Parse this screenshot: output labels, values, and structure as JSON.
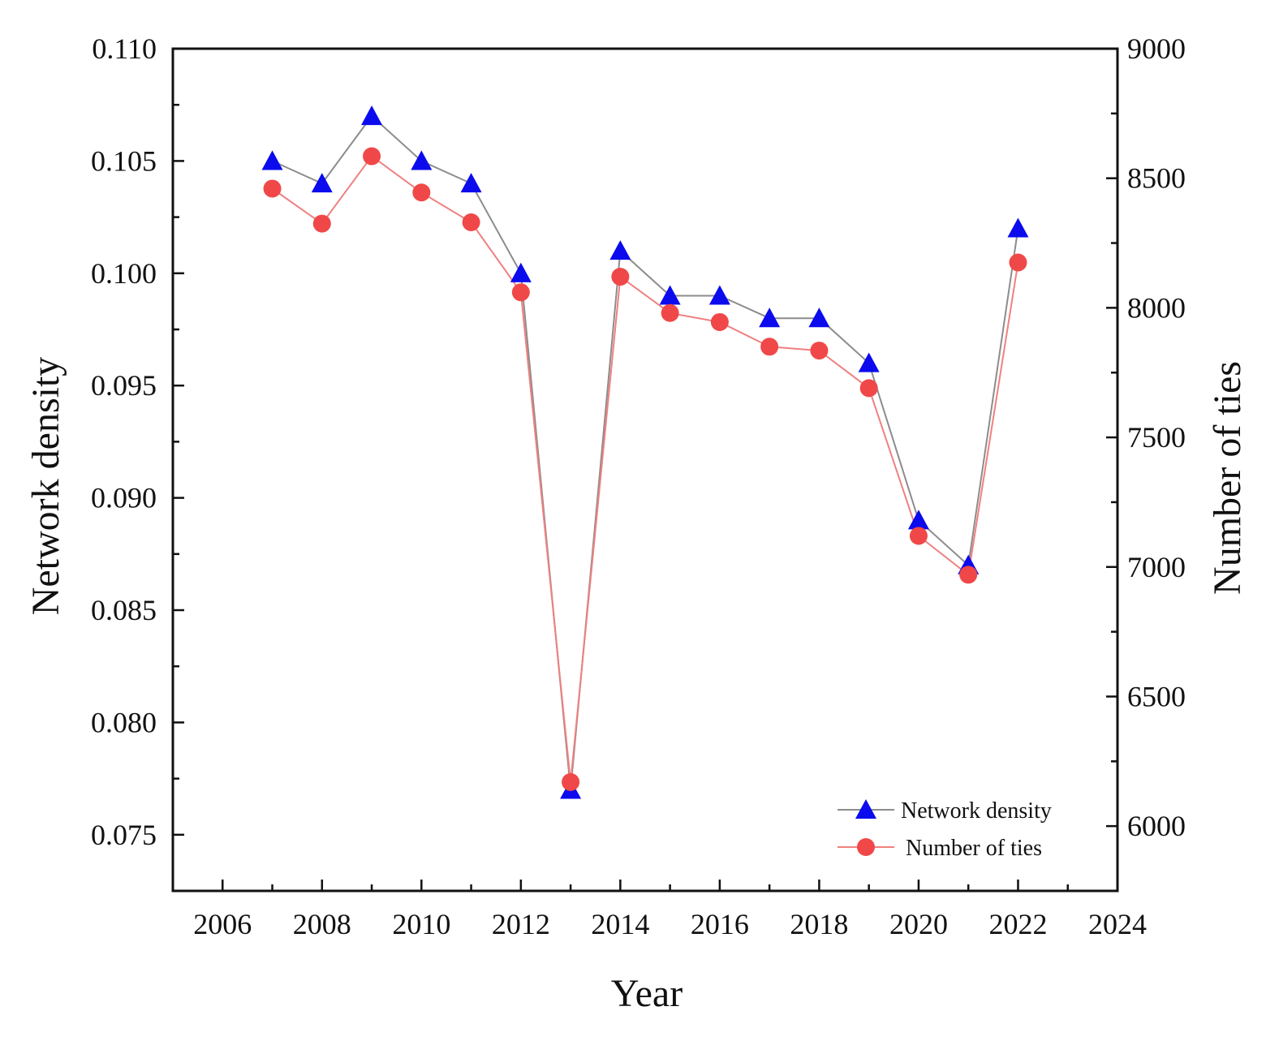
{
  "chart_data": {
    "type": "line",
    "title": "",
    "xlabel": "Year",
    "ylabel_left": "Network density",
    "ylabel_right": "Number of ties",
    "xlim": [
      2005,
      2024
    ],
    "ylim_left": [
      0.0725,
      0.11
    ],
    "ylim_right": [
      5750,
      9000
    ],
    "x_ticks": [
      2006,
      2008,
      2010,
      2012,
      2014,
      2016,
      2018,
      2020,
      2022,
      2024
    ],
    "y_left_ticks": [
      "0.075",
      "0.080",
      "0.085",
      "0.090",
      "0.095",
      "0.100",
      "0.105",
      "0.110"
    ],
    "y_right_ticks": [
      "6000",
      "6500",
      "7000",
      "7500",
      "8000",
      "8500",
      "9000"
    ],
    "x": [
      2007,
      2008,
      2009,
      2010,
      2011,
      2012,
      2013,
      2014,
      2015,
      2016,
      2017,
      2018,
      2019,
      2020,
      2021,
      2022
    ],
    "series": [
      {
        "name": "Network density",
        "axis": "left",
        "marker": "triangle",
        "marker_color": "#0b0bee",
        "line_color": "#8c8c8c",
        "values": [
          0.105,
          0.104,
          0.107,
          0.105,
          0.104,
          0.1,
          0.077,
          0.101,
          0.099,
          0.099,
          0.098,
          0.098,
          0.096,
          0.089,
          0.087,
          0.102
        ]
      },
      {
        "name": "Number of ties",
        "axis": "right",
        "marker": "circle",
        "marker_color": "#f04848",
        "line_color": "#f08080",
        "values": [
          8460,
          8325,
          8585,
          8445,
          8330,
          8060,
          6170,
          8120,
          7980,
          7945,
          7850,
          7835,
          7690,
          7120,
          6970,
          8175
        ]
      }
    ],
    "legend": {
      "position": "bottom-right",
      "entries": [
        "Network density",
        "Number of ties"
      ]
    }
  }
}
